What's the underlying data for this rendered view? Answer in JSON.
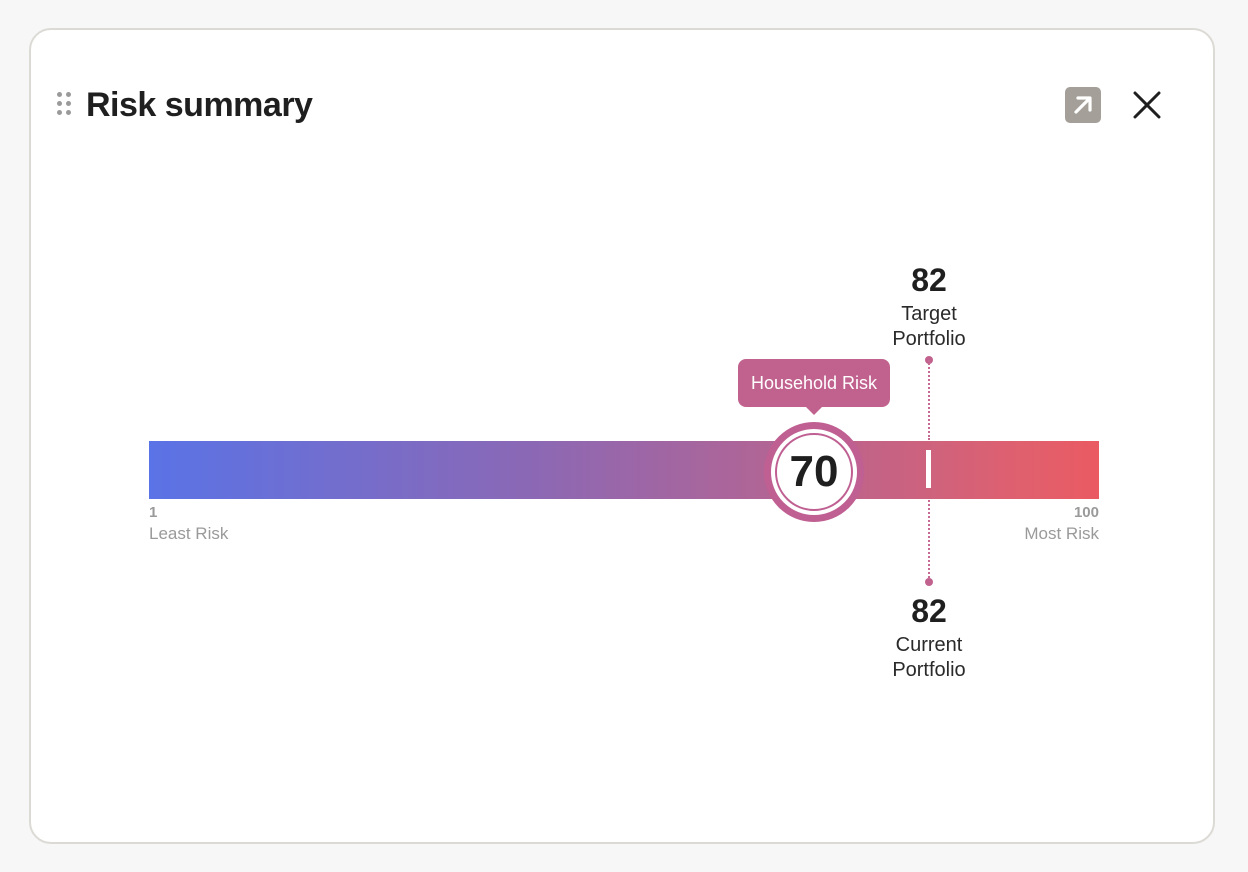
{
  "panel": {
    "title": "Risk summary",
    "expand_icon": "arrow-up-right-icon",
    "close_icon": "close-icon"
  },
  "scale": {
    "min_value": "1",
    "min_label": "Least Risk",
    "max_value": "100",
    "max_label": "Most Risk",
    "gradient_start_color": "#5a73e6",
    "gradient_end_color": "#ea5a62"
  },
  "household_risk": {
    "label": "Household Risk",
    "value": "70",
    "accent_color": "#c1628e"
  },
  "target_portfolio": {
    "value": "82",
    "label_line1": "Target",
    "label_line2": "Portfolio"
  },
  "current_portfolio": {
    "value": "82",
    "label_line1": "Current",
    "label_line2": "Portfolio"
  }
}
